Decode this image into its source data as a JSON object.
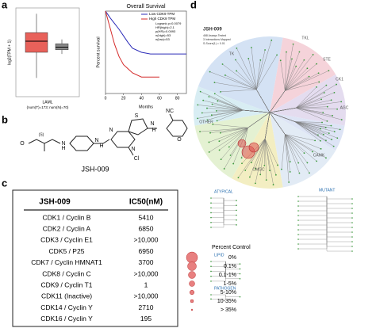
{
  "panels": {
    "a": "a",
    "b": "b",
    "c": "c",
    "d": "d"
  },
  "chart_data": [
    {
      "type": "box",
      "ylabel": "log2(TPM + 1)",
      "categories": [
        "LAML"
      ],
      "note": "(num(T)=173; num(N)=70)",
      "ylim": [
        0,
        10
      ],
      "boxes": [
        {
          "color": "#e8615a",
          "min": 2,
          "q1": 5,
          "median": 6.3,
          "q3": 7.3,
          "max": 9.5
        },
        {
          "color": "#888888",
          "min": 4.8,
          "q1": 5.3,
          "median": 5.6,
          "q3": 6,
          "max": 6.5
        }
      ]
    },
    {
      "type": "line",
      "title": "Overall Survival",
      "xlabel": "Months",
      "ylabel": "Percent survival",
      "xlim": [
        0,
        90
      ],
      "xticks": [
        0,
        20,
        40,
        60,
        80
      ],
      "ylim": [
        0,
        1
      ],
      "series": [
        {
          "name": "Low CDK9 TPM",
          "color": "#2b2bb8",
          "x": [
            0,
            5,
            10,
            15,
            20,
            25,
            30,
            40,
            50,
            60,
            70,
            80,
            90
          ],
          "values": [
            1,
            0.92,
            0.85,
            0.78,
            0.7,
            0.62,
            0.55,
            0.5,
            0.48,
            0.48,
            0.48,
            0.48,
            0.48
          ]
        },
        {
          "name": "High CDK9 TPM",
          "color": "#d42a2a",
          "x": [
            0,
            5,
            10,
            15,
            20,
            25,
            30,
            40,
            50,
            60
          ],
          "values": [
            1,
            0.8,
            0.6,
            0.45,
            0.35,
            0.3,
            0.25,
            0.2,
            0.2,
            0.2
          ]
        }
      ],
      "annotations": [
        "Logrank p=0.0079",
        "HR(high)=2.1",
        "p(HR)=0.0093",
        "n(high)=53",
        "n(low)=53"
      ]
    }
  ],
  "compound": {
    "name": "JSH-009",
    "atoms": [
      "O",
      "(S)",
      "N",
      "H",
      "N",
      "H",
      "N",
      "N",
      "S",
      "N",
      "H",
      "NC",
      "O",
      "Cl"
    ]
  },
  "table": {
    "header": [
      "JSH-009",
      "IC50(nM)"
    ],
    "rows": [
      [
        "CDK1 / Cyclin B",
        "5410"
      ],
      [
        "CDK2 / Cyclin A",
        "6850"
      ],
      [
        "CDK3 / Cyclin E1",
        ">10,000"
      ],
      [
        "CDK5 / P25",
        "6950"
      ],
      [
        "CDK7 / Cyclin HMNAT1",
        "3700"
      ],
      [
        "CDK8 / Cyclin C",
        ">10,000"
      ],
      [
        "CDK9 / Cyclin T1",
        "1"
      ],
      [
        "CDK11 (Inactive)",
        ">10,000"
      ],
      [
        "CDK14 / Cyclin Y",
        "2710"
      ],
      [
        "CDK16 / Cyclin Y",
        "195"
      ]
    ]
  },
  "kinome": {
    "title": "JSH-009",
    "info": [
      "468 Assays Tested",
      "3 Interactions Mapped",
      "S-Score(1) = 0.01"
    ],
    "groups": [
      "TK",
      "TKL",
      "STE",
      "CK1",
      "AGC",
      "CAMK",
      "CMGC",
      "OTHER"
    ],
    "trees": [
      "ATYPICAL",
      "MUTANT",
      "LIPID",
      "PATHOGEN"
    ],
    "legend": {
      "title": "Percent Control",
      "items": [
        "0%",
        "0.1%",
        "0.1-1%",
        "1-5%",
        "5-10%",
        "10-35%",
        "> 35%"
      ]
    }
  }
}
